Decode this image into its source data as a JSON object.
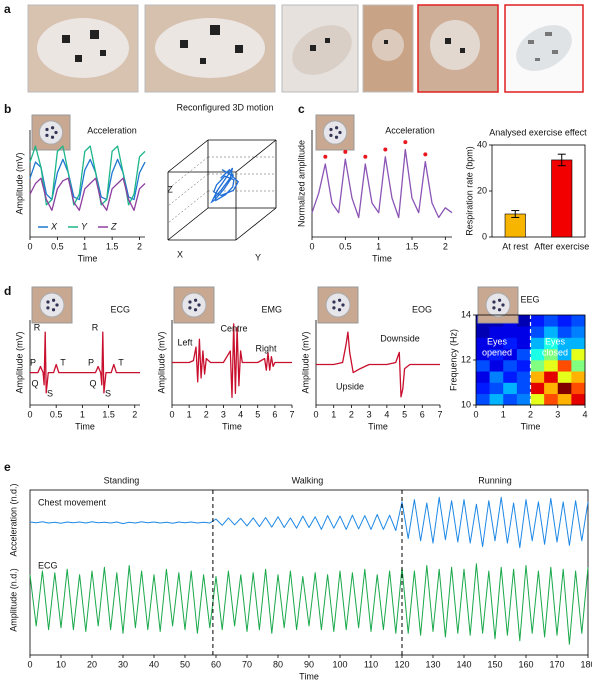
{
  "panel_labels": [
    "a",
    "b",
    "c",
    "d",
    "e"
  ],
  "chart_data": [
    {
      "type": "line",
      "title": "Acceleration",
      "xlabel": "Time",
      "ylabel": "Amplitude (mV)",
      "x": [
        0,
        0.1,
        0.2,
        0.3,
        0.4,
        0.5,
        0.6,
        0.7,
        0.8,
        0.9,
        1,
        1.1,
        1.2,
        1.3,
        1.4,
        1.5,
        1.6,
        1.7,
        1.8,
        1.9,
        2,
        2.1
      ],
      "xlim": [
        0,
        2.1
      ],
      "xticks": [
        0,
        0.5,
        1,
        1.5,
        2
      ],
      "ylim": [
        -1,
        1
      ],
      "legend": "bottom",
      "series": [
        {
          "name": "X",
          "color": "#1f78d1",
          "values": [
            0.1,
            0.4,
            0.3,
            -0.2,
            -0.3,
            0.2,
            0.45,
            0.2,
            -0.25,
            -0.3,
            0.25,
            0.45,
            0.2,
            -0.25,
            -0.3,
            0.2,
            0.45,
            0.2,
            -0.25,
            -0.3,
            0.2,
            0.4
          ]
        },
        {
          "name": "Y",
          "color": "#1db58a",
          "values": [
            0.4,
            0.7,
            0.3,
            -0.4,
            -0.3,
            0.6,
            0.7,
            0.2,
            -0.4,
            -0.2,
            0.6,
            0.7,
            0.2,
            -0.4,
            -0.3,
            0.6,
            0.7,
            0.2,
            -0.4,
            -0.2,
            0.5,
            0.6
          ]
        },
        {
          "name": "Z",
          "color": "#8e3fa0",
          "values": [
            -0.2,
            0,
            0.1,
            -0.3,
            -0.5,
            -0.1,
            0.05,
            0.1,
            -0.35,
            -0.5,
            -0.1,
            0,
            0.1,
            -0.35,
            -0.5,
            -0.1,
            0,
            0.1,
            -0.3,
            -0.5,
            -0.1,
            0
          ]
        }
      ]
    },
    {
      "type": "line3d",
      "title": "Reconfigured 3D motion",
      "xlabel": "X",
      "ylabel": "Y",
      "zlabel": "Z",
      "color": "#1f6fd6",
      "xlim": [
        -1,
        1
      ],
      "ylim": [
        -1,
        1
      ],
      "zlim": [
        -1,
        1
      ],
      "x": [
        0,
        0.2,
        0.3,
        0.1,
        -0.2,
        -0.3,
        -0.1,
        0.2,
        0.35,
        0.2,
        -0.1,
        -0.3,
        -0.2,
        0.1,
        0.3,
        0.25,
        0,
        -0.25,
        -0.3,
        -0.1,
        0.15,
        0.3,
        0.1,
        -0.1
      ],
      "y": [
        0,
        0.1,
        0.3,
        0.4,
        0.3,
        0.1,
        -0.1,
        -0.2,
        0,
        0.2,
        0.35,
        0.2,
        0,
        -0.2,
        -0.1,
        0.1,
        0.3,
        0.2,
        0,
        -0.2,
        -0.15,
        0.05,
        0.2,
        0.1
      ],
      "z": [
        0.6,
        0.4,
        0.1,
        -0.2,
        -0.3,
        -0.1,
        0.2,
        0.5,
        0.3,
        0,
        -0.3,
        -0.4,
        -0.2,
        0.1,
        0.4,
        0.6,
        0.3,
        -0.1,
        -0.35,
        -0.2,
        0.1,
        0.4,
        0.5,
        0.3
      ]
    },
    {
      "type": "line",
      "title": "Acceleration",
      "xlabel": "Time",
      "ylabel": "Normalized amplitude",
      "x": [
        0,
        0.1,
        0.2,
        0.3,
        0.4,
        0.5,
        0.6,
        0.7,
        0.8,
        0.9,
        1,
        1.1,
        1.2,
        1.3,
        1.4,
        1.5,
        1.6,
        1.7,
        1.8,
        1.9,
        2,
        2.1
      ],
      "xlim": [
        0,
        2.1
      ],
      "xticks": [
        0,
        0.5,
        1,
        1.5,
        2
      ],
      "ylim": [
        -1,
        1.2
      ],
      "series": [
        {
          "color": "#8b55b5",
          "values": [
            -0.5,
            -0.1,
            0.5,
            -0.3,
            -0.5,
            0.6,
            -0.2,
            -0.6,
            0.5,
            -0.3,
            -0.5,
            0.65,
            -0.2,
            -0.6,
            0.8,
            -0.2,
            -0.5,
            0.55,
            -0.3,
            -0.6,
            -0.4,
            -0.5
          ]
        }
      ],
      "peaks": {
        "color": "#e8191e",
        "x": [
          0.2,
          0.5,
          0.8,
          1.1,
          1.4,
          1.7
        ],
        "values": [
          0.65,
          0.75,
          0.65,
          0.8,
          0.95,
          0.7
        ]
      }
    },
    {
      "type": "bar",
      "title": "Analysed exercise effect",
      "ylabel": "Respiration rate (bpm)",
      "categories": [
        "At rest",
        "After exercise"
      ],
      "values": [
        10,
        33.5
      ],
      "errors": [
        1.5,
        2.5
      ],
      "colors": [
        "#f7b500",
        "#f20000"
      ],
      "ylim": [
        0,
        40
      ],
      "yticks": [
        0,
        20,
        40
      ]
    },
    {
      "type": "line",
      "title": "ECG",
      "xlabel": "Time",
      "ylabel": "Amplitude (mV)",
      "x": [
        0,
        0.15,
        0.2,
        0.25,
        0.27,
        0.29,
        0.31,
        0.35,
        0.45,
        0.5,
        0.55,
        0.7,
        1,
        1.25,
        1.3,
        1.35,
        1.37,
        1.39,
        1.41,
        1.45,
        1.55,
        1.6,
        1.65,
        1.8,
        2.1
      ],
      "xlim": [
        0,
        2.1
      ],
      "xticks": [
        0,
        0.5,
        1,
        1.5,
        2
      ],
      "ylim": [
        -0.8,
        1.3
      ],
      "series": [
        {
          "color": "#c8102e",
          "values": [
            0,
            0,
            0.15,
            0,
            -0.3,
            1,
            -0.5,
            0,
            0,
            0.2,
            0,
            0,
            0,
            0,
            0.15,
            0,
            -0.3,
            1,
            -0.5,
            0,
            0,
            0.2,
            0,
            0,
            0
          ]
        }
      ],
      "annotations": [
        "R",
        "P",
        "Q",
        "S",
        "T",
        "R",
        "P",
        "Q",
        "S",
        "T"
      ]
    },
    {
      "type": "line",
      "title": "EMG",
      "xlabel": "Time",
      "ylabel": "Amplitude (mV)",
      "x": [
        0,
        0.5,
        1,
        1.25,
        1.4,
        1.5,
        1.6,
        1.7,
        1.8,
        1.9,
        2,
        2.25,
        2.5,
        3,
        3.4,
        3.5,
        3.6,
        3.7,
        3.8,
        3.9,
        4,
        4.1,
        4.5,
        5,
        5.4,
        5.5,
        5.6,
        5.7,
        5.8,
        5.9,
        6,
        6.5,
        7
      ],
      "xlim": [
        0,
        7
      ],
      "xticks": [
        0,
        1,
        2,
        3,
        4,
        5,
        6,
        7
      ],
      "ylim": [
        -1.1,
        1.1
      ],
      "series": [
        {
          "color": "#c8102e",
          "values": [
            0,
            0,
            0,
            0.05,
            0.4,
            -0.5,
            0.6,
            -0.4,
            0.3,
            -0.3,
            0.1,
            0,
            0,
            0,
            0.3,
            -0.9,
            1,
            -0.8,
            0.9,
            -0.6,
            0.3,
            0,
            0,
            0,
            0.1,
            -0.2,
            0.25,
            -0.2,
            0.15,
            -0.1,
            0,
            0,
            0
          ]
        }
      ],
      "annotations": [
        "Left",
        "Centre",
        "Right"
      ]
    },
    {
      "type": "line",
      "title": "EOG",
      "xlabel": "Time",
      "ylabel": "Amplitude (mV)",
      "x": [
        0,
        1,
        1.5,
        1.7,
        1.8,
        1.9,
        2.1,
        2.5,
        3,
        3.5,
        4,
        4.5,
        4.7,
        4.8,
        4.9,
        5,
        5.3,
        6,
        7
      ],
      "xlim": [
        0,
        7
      ],
      "xticks": [
        0,
        1,
        2,
        3,
        4,
        5,
        6,
        7
      ],
      "ylim": [
        -1,
        1.1
      ],
      "series": [
        {
          "color": "#c8102e",
          "values": [
            0,
            0,
            0.05,
            0.5,
            0.8,
            0.3,
            -0.2,
            -0.1,
            0,
            0,
            0,
            0.05,
            0.3,
            -0.8,
            -0.6,
            -0.1,
            0,
            0,
            0
          ]
        }
      ],
      "annotations": [
        "Upside",
        "Downside"
      ]
    },
    {
      "type": "heatmap",
      "title": "EEG",
      "xlabel": "Time",
      "ylabel": "Frequency (Hz)",
      "colormap": "jet",
      "xbins": [
        0,
        0.5,
        1,
        1.5,
        2,
        2.5,
        3,
        3.5,
        4
      ],
      "ybins": [
        10,
        10.5,
        11,
        11.5,
        12,
        12.5,
        13,
        13.5,
        14
      ],
      "xlim": [
        0,
        4
      ],
      "ylim": [
        10,
        14
      ],
      "xticks": [
        0,
        1,
        2,
        3,
        4
      ],
      "yticks": [
        10,
        12,
        14
      ],
      "zlim": [
        0,
        1
      ],
      "z": [
        [
          0.2,
          0.3,
          0.2,
          0.25,
          0.6,
          0.8,
          0.7,
          0.9
        ],
        [
          0.15,
          0.2,
          0.3,
          0.2,
          0.9,
          0.7,
          1.0,
          0.8
        ],
        [
          0.1,
          0.25,
          0.15,
          0.2,
          0.7,
          0.9,
          0.6,
          0.7
        ],
        [
          0.2,
          0.1,
          0.2,
          0.15,
          0.5,
          0.6,
          0.8,
          0.5
        ],
        [
          0.1,
          0.15,
          0.1,
          0.2,
          0.4,
          0.5,
          0.3,
          0.6
        ],
        [
          0.1,
          0.1,
          0.15,
          0.1,
          0.3,
          0.4,
          0.3,
          0.3
        ],
        [
          0.05,
          0.1,
          0.1,
          0.1,
          0.2,
          0.3,
          0.2,
          0.25
        ],
        [
          0.05,
          0.05,
          0.1,
          0.05,
          0.15,
          0.2,
          0.15,
          0.2
        ]
      ],
      "vlines": [
        2
      ],
      "annotations": [
        [
          "Eyes",
          "opened"
        ],
        [
          "Eyes",
          "closed"
        ]
      ]
    },
    {
      "type": "stacked_line",
      "xlabel": "Time",
      "x": [
        0,
        2,
        4,
        6,
        8,
        10,
        12,
        14,
        16,
        18,
        20,
        22,
        24,
        26,
        28,
        30,
        32,
        34,
        36,
        38,
        40,
        42,
        44,
        46,
        48,
        50,
        52,
        54,
        56,
        58,
        60,
        62,
        64,
        66,
        68,
        70,
        72,
        74,
        76,
        78,
        80,
        82,
        84,
        86,
        88,
        90,
        92,
        94,
        96,
        98,
        100,
        102,
        104,
        106,
        108,
        110,
        112,
        114,
        116,
        118,
        120,
        122,
        124,
        126,
        128,
        130,
        132,
        134,
        136,
        138,
        140,
        142,
        144,
        146,
        148,
        150,
        152,
        154,
        156,
        158,
        160,
        162,
        164,
        166,
        168,
        170,
        172,
        174,
        176,
        178,
        180
      ],
      "xlim": [
        0,
        180
      ],
      "xticks": [
        0,
        10,
        20,
        30,
        40,
        50,
        60,
        70,
        80,
        90,
        100,
        110,
        120,
        130,
        140,
        150,
        160,
        170,
        180
      ],
      "vlines": [
        59,
        120
      ],
      "phases": [
        "Standing",
        "Walking",
        "Running"
      ],
      "series": [
        {
          "name": "Chest movement",
          "ylabel": "Acceleration (n.d.)",
          "color": "#1e88e5",
          "ylim": [
            -1.2,
            1.2
          ],
          "values": [
            0.02,
            -0.01,
            0.03,
            -0.02,
            0.01,
            -0.03,
            0.02,
            -0.01,
            0.02,
            -0.02,
            0.03,
            -0.01,
            0.01,
            -0.02,
            0.02,
            -0.05,
            0.01,
            -0.02,
            0.03,
            -0.01,
            0.02,
            -0.02,
            0.01,
            -0.03,
            0.02,
            -0.01,
            0.02,
            -0.02,
            0.01,
            -0.02,
            0.15,
            -0.12,
            0.2,
            -0.1,
            0.18,
            -0.15,
            0.2,
            -0.18,
            0.22,
            -0.2,
            0.25,
            -0.22,
            0.2,
            -0.25,
            0.28,
            -0.22,
            0.25,
            -0.3,
            0.3,
            -0.25,
            0.28,
            -0.3,
            0.32,
            -0.28,
            0.3,
            -0.3,
            0.35,
            -0.3,
            0.32,
            -0.35,
            0.9,
            -0.7,
            1.0,
            -0.8,
            0.85,
            -0.9,
            1.1,
            -0.75,
            0.95,
            -0.85,
            1.0,
            -0.9,
            0.8,
            -1.05,
            0.95,
            -0.8,
            1.1,
            -0.9,
            0.85,
            -1.1,
            1.0,
            -0.8,
            0.9,
            -0.95,
            1.05,
            -0.85,
            0.9,
            -1.0,
            0.95,
            -0.8,
            0.9
          ]
        },
        {
          "name": "ECG",
          "ylabel": "Amplitude (n.d.)",
          "color": "#19a84a",
          "ylim": [
            -1.2,
            1.2
          ],
          "values": [
            0.8,
            -0.6,
            0.9,
            -0.7,
            0.85,
            -0.65,
            0.95,
            -0.7,
            0.8,
            -0.75,
            0.9,
            -0.6,
            1.0,
            -0.7,
            0.85,
            -0.8,
            1.05,
            -0.65,
            0.9,
            -0.7,
            0.8,
            -0.75,
            0.95,
            -0.6,
            0.85,
            -0.7,
            0.9,
            -0.8,
            0.8,
            -0.65,
            0.75,
            -0.7,
            0.9,
            -0.6,
            0.8,
            -0.75,
            0.85,
            -0.7,
            0.95,
            -0.8,
            0.8,
            -0.65,
            0.9,
            -0.7,
            0.75,
            -0.6,
            0.85,
            -0.7,
            0.8,
            -0.75,
            0.9,
            -0.7,
            0.85,
            -0.65,
            0.95,
            -0.75,
            0.8,
            -0.7,
            0.9,
            -0.8,
            1.0,
            -0.8,
            0.9,
            -0.85,
            1.05,
            -0.75,
            0.95,
            -0.9,
            1.0,
            -0.8,
            0.95,
            -0.85,
            1.1,
            -0.8,
            0.9,
            -0.95,
            1.0,
            -0.85,
            0.95,
            -1.0,
            1.05,
            -0.8,
            0.9,
            -0.9,
            1.0,
            -0.85,
            0.95,
            -1.1,
            0.9,
            -0.8,
            1.0
          ]
        }
      ]
    }
  ]
}
